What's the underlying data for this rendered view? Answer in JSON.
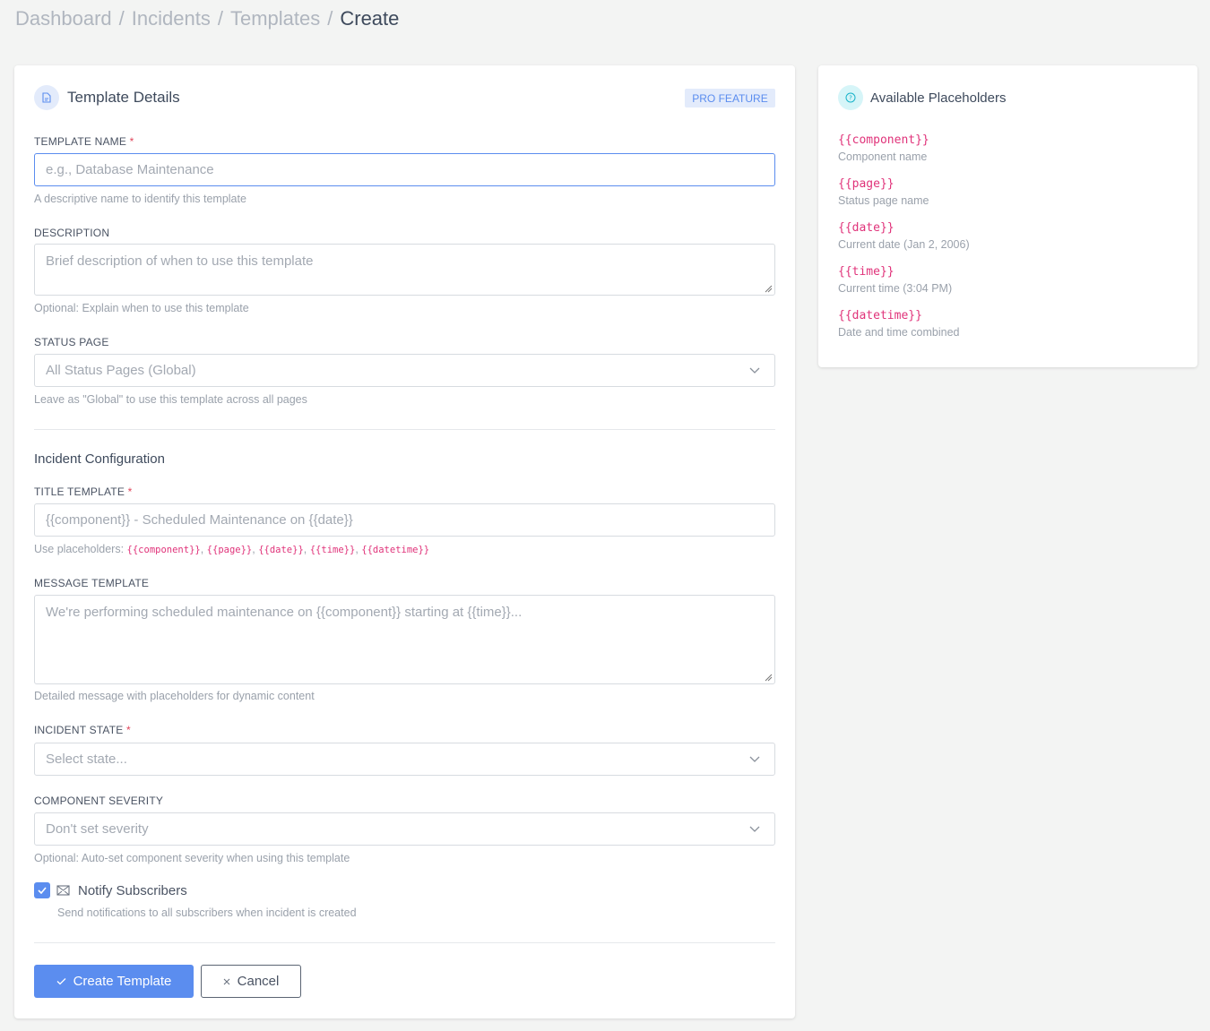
{
  "breadcrumb": [
    "Dashboard",
    "Incidents",
    "Templates",
    "Create"
  ],
  "details": {
    "title": "Template Details",
    "badge": "PRO FEATURE",
    "icon": "document-icon"
  },
  "form": {
    "template_name": {
      "label": "TEMPLATE NAME",
      "required": "*",
      "placeholder": "e.g., Database Maintenance",
      "help": "A descriptive name to identify this template"
    },
    "description": {
      "label": "DESCRIPTION",
      "placeholder": "Brief description of when to use this template",
      "help": "Optional: Explain when to use this template"
    },
    "status_page": {
      "label": "STATUS PAGE",
      "value": "All Status Pages (Global)",
      "help": "Leave as \"Global\" to use this template across all pages"
    },
    "section": "Incident Configuration",
    "title_template": {
      "label": "TITLE TEMPLATE",
      "required": "*",
      "placeholder": "{{component}} - Scheduled Maintenance on {{date}}",
      "help_prefix": "Use placeholders: ",
      "help_codes": [
        "{{component}}",
        "{{page}}",
        "{{date}}",
        "{{time}}",
        "{{datetime}}"
      ]
    },
    "message_template": {
      "label": "MESSAGE TEMPLATE",
      "placeholder": "We're performing scheduled maintenance on {{component}} starting at {{time}}...",
      "help": "Detailed message with placeholders for dynamic content"
    },
    "incident_state": {
      "label": "INCIDENT STATE",
      "required": "*",
      "value": "Select state..."
    },
    "component_severity": {
      "label": "COMPONENT SEVERITY",
      "value": "Don't set severity",
      "help": "Optional: Auto-set component severity when using this template"
    },
    "notify": {
      "label": "Notify Subscribers",
      "checked": true,
      "help": "Send notifications to all subscribers when incident is created"
    },
    "create_label": "Create Template",
    "cancel_label": "Cancel"
  },
  "placeholders": {
    "title": "Available Placeholders",
    "icon": "question-circle-icon",
    "items": [
      {
        "code": "{{component}}",
        "desc": "Component name"
      },
      {
        "code": "{{page}}",
        "desc": "Status page name"
      },
      {
        "code": "{{date}}",
        "desc": "Current date (Jan 2, 2006)"
      },
      {
        "code": "{{time}}",
        "desc": "Current time (3:04 PM)"
      },
      {
        "code": "{{datetime}}",
        "desc": "Date and time combined"
      }
    ]
  },
  "colors": {
    "primary": "#5b8def",
    "code": "#e0337a",
    "required": "#e0445a"
  }
}
